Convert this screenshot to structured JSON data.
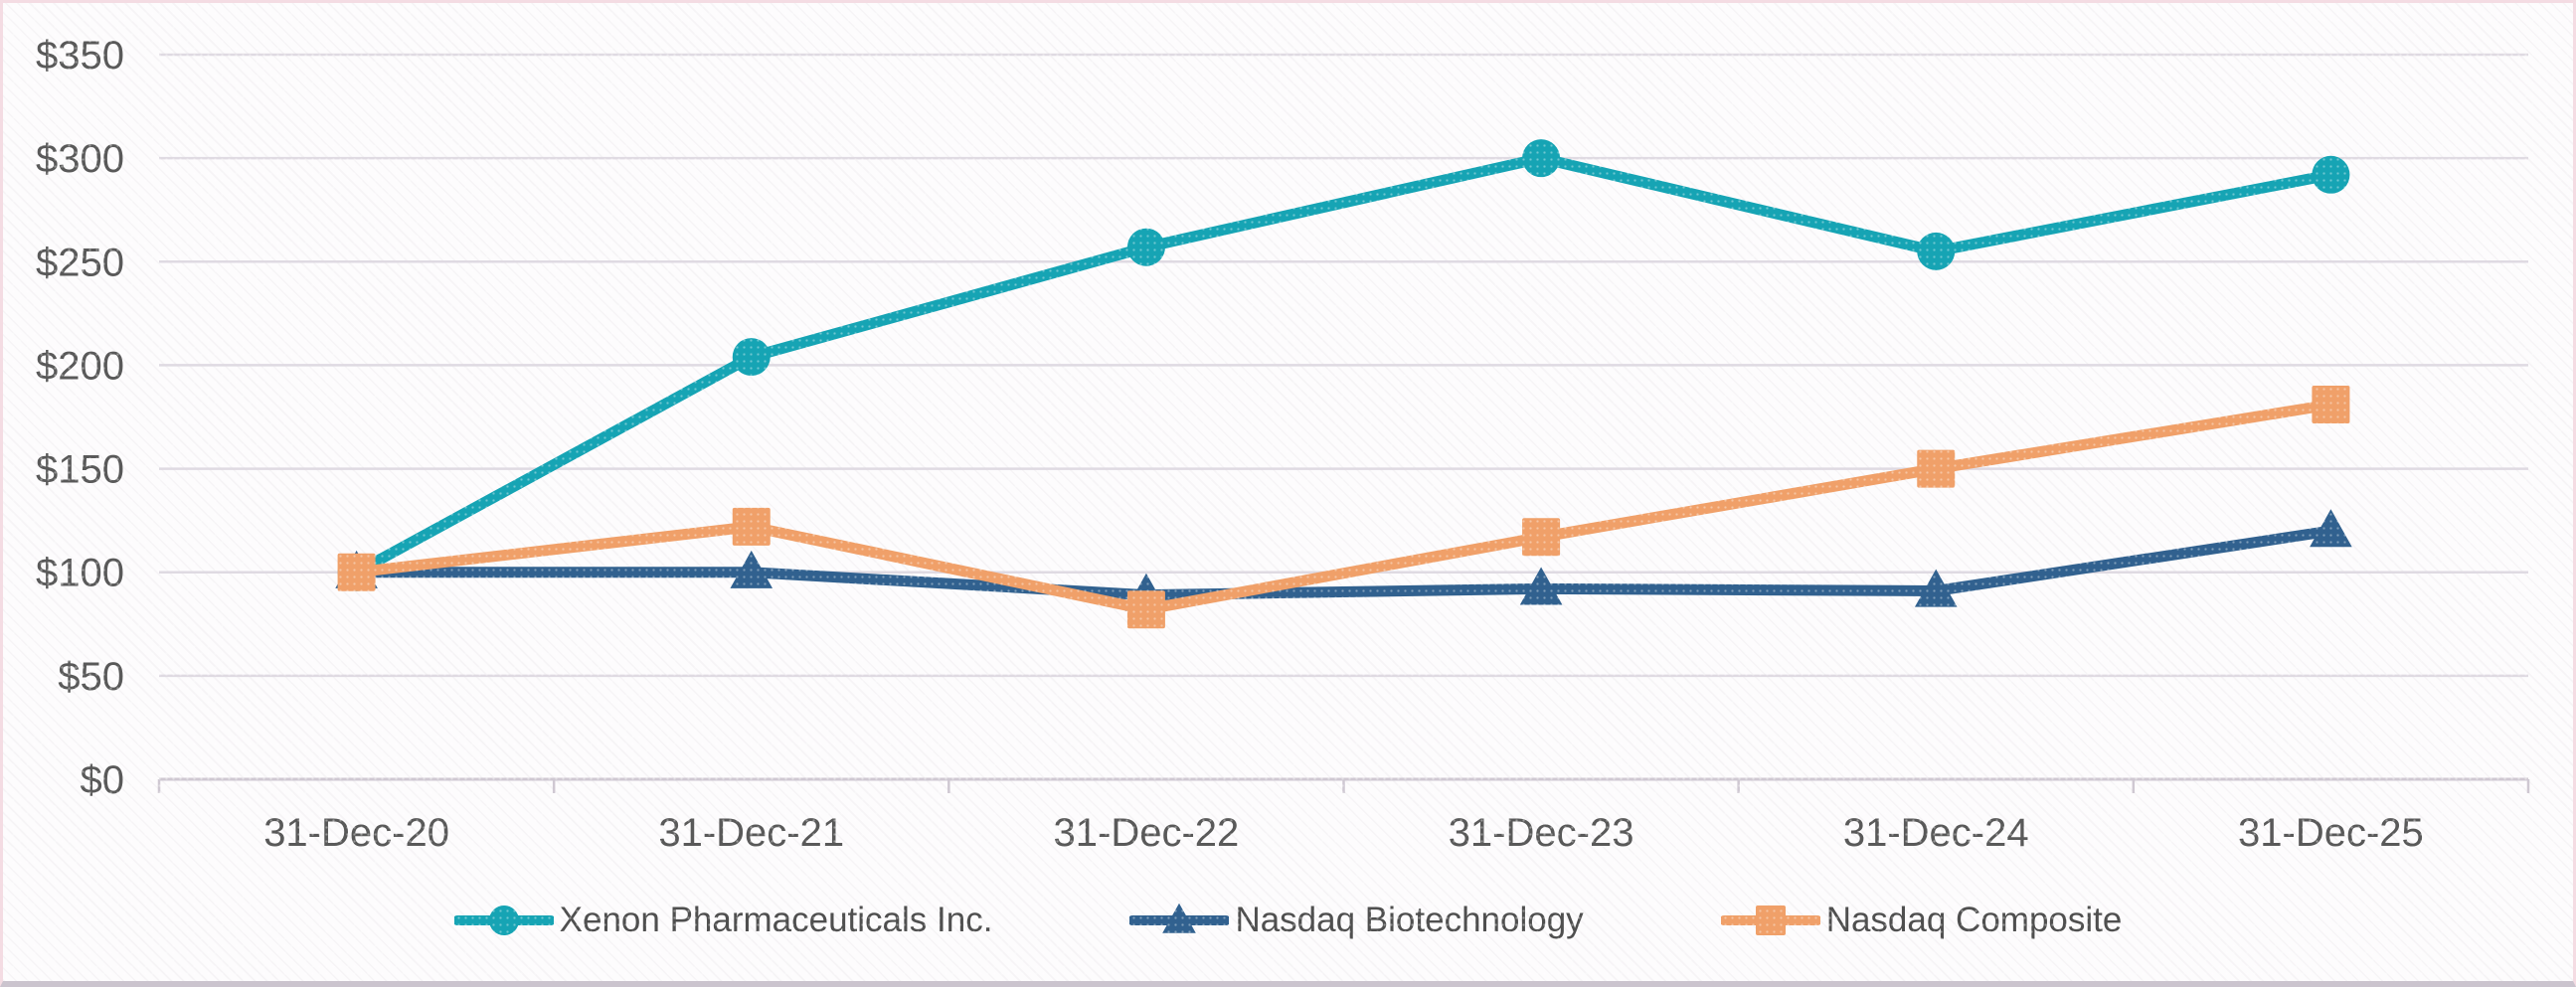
{
  "chart_data": {
    "type": "line",
    "title": "",
    "categories": [
      "31-Dec-20",
      "31-Dec-21",
      "31-Dec-22",
      "31-Dec-23",
      "31-Dec-24",
      "31-Dec-25"
    ],
    "series": [
      {
        "name": "Xenon Pharmaceuticals Inc.",
        "marker": "circle",
        "color": "#16A4B4",
        "values": [
          100,
          204,
          257,
          300,
          255,
          292
        ]
      },
      {
        "name": "Nasdaq Biotechnology",
        "marker": "triangle",
        "color": "#31618F",
        "values": [
          100,
          100,
          89,
          92,
          91,
          120
        ]
      },
      {
        "name": "Nasdaq Composite",
        "marker": "square",
        "color": "#F0A069",
        "values": [
          100,
          122,
          82,
          117,
          150,
          181
        ]
      }
    ],
    "xlabel": "",
    "ylabel": "",
    "y_tick_prefix": "$",
    "y_ticks": [
      0,
      50,
      100,
      150,
      200,
      250,
      300,
      350
    ],
    "ylim": [
      0,
      350
    ],
    "grid": true,
    "legend_position": "bottom"
  },
  "style_colors": {
    "gridline": "#DFDAE2",
    "axis_line": "#CFC8D2",
    "tick_text": "#595959",
    "frame_border_pink": "#F4DCE3",
    "frame_border_bottom": "#CBC4CE"
  }
}
